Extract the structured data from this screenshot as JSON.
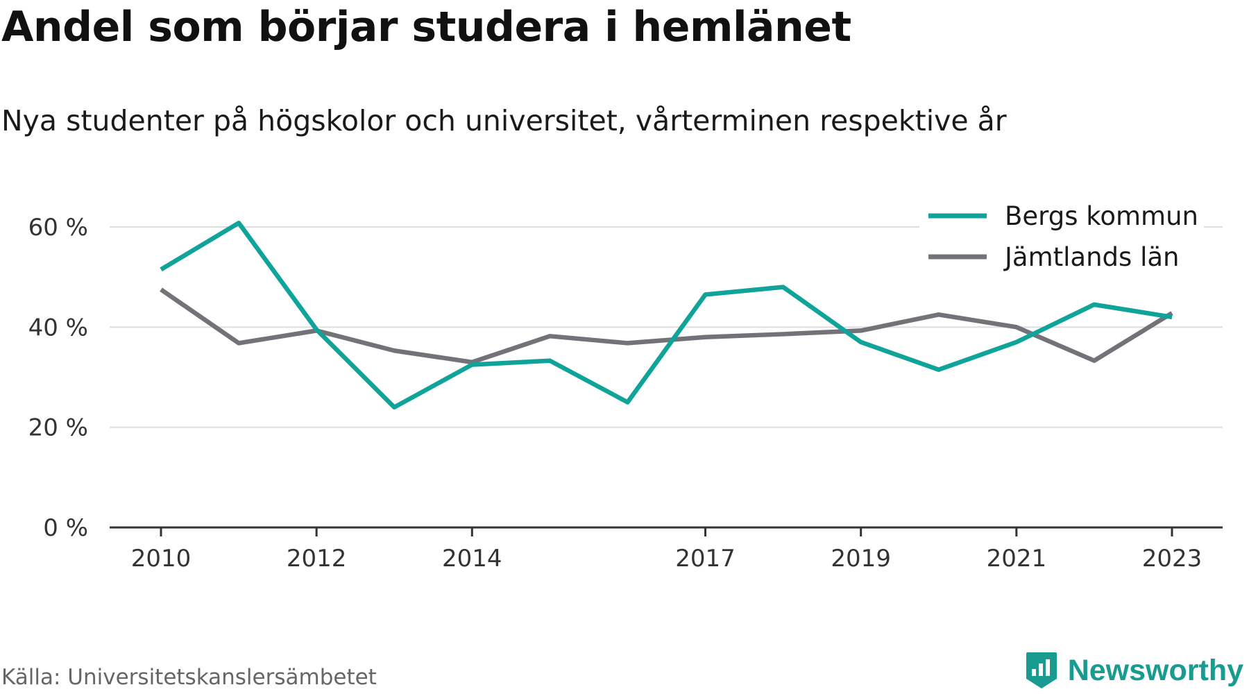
{
  "chart_data": {
    "type": "line",
    "title": "Andel som börjar studera i hemlänet",
    "subtitle": "Nya studenter på högskolor och universitet, vårterminen respektive år",
    "x": [
      2010,
      2011,
      2012,
      2013,
      2014,
      2015,
      2016,
      2017,
      2018,
      2019,
      2020,
      2021,
      2022,
      2023
    ],
    "x_tick_labels": [
      "2010",
      "2012",
      "2014",
      "2017",
      "2019",
      "2021",
      "2023"
    ],
    "x_ticks": [
      2010,
      2012,
      2014,
      2017,
      2019,
      2021,
      2023
    ],
    "y_ticks": [
      0,
      20,
      40,
      60
    ],
    "y_tick_labels": [
      "0 %",
      "20 %",
      "40 %",
      "60 %"
    ],
    "ylim": [
      0,
      60
    ],
    "grid": true,
    "legend_position": "top-right",
    "series": [
      {
        "name": "Bergs kommun",
        "color": "#0fa39a",
        "values": [
          51.5,
          60.8,
          39.5,
          24.0,
          32.5,
          33.3,
          25.0,
          46.5,
          48.0,
          37.0,
          31.5,
          37.0,
          44.5,
          42.0
        ]
      },
      {
        "name": "Jämtlands län",
        "color": "#737278",
        "values": [
          47.5,
          36.8,
          39.3,
          35.3,
          33.0,
          38.2,
          36.8,
          38.0,
          38.6,
          39.3,
          42.5,
          40.0,
          33.3,
          42.8
        ]
      }
    ]
  },
  "colors": {
    "grid": "#dddddd",
    "axis": "#333333",
    "brand": "#1a9b90"
  },
  "footer": {
    "source": "Källa: Universitetskanslersämbetet",
    "brand": "Newsworthy",
    "brand_icon": "newsworthy-logo-icon"
  }
}
